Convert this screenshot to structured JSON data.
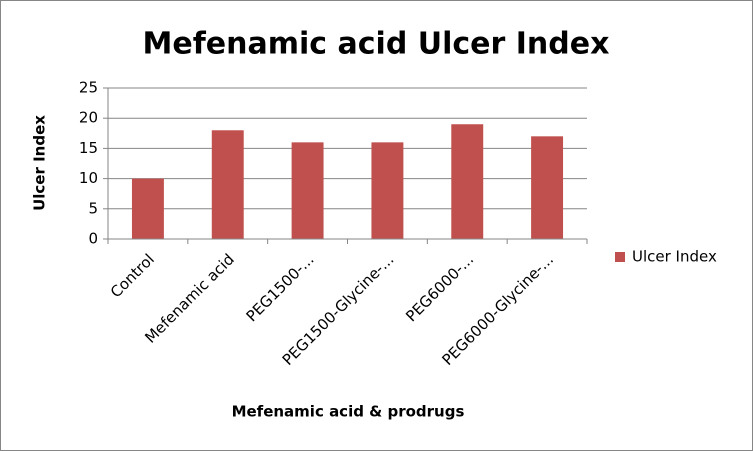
{
  "chart_data": {
    "type": "bar",
    "title": "Mefenamic acid Ulcer Index",
    "x_label": "Mefenamic acid & prodrugs",
    "y_label": "Ulcer Index",
    "categories": [
      "Control",
      "Mefenamic acid",
      "PEG1500-...",
      "PEG1500-Glycine-...",
      "PEG6000-...",
      "PEG6000-Glycine-..."
    ],
    "series": [
      {
        "name": "Ulcer Index",
        "color": "#c0504d",
        "values": [
          10,
          18,
          16,
          16,
          19,
          17
        ]
      }
    ],
    "ylim": [
      0,
      25
    ],
    "yticks": [
      0,
      5,
      10,
      15,
      20,
      25
    ],
    "grid": true,
    "legend": "right"
  }
}
